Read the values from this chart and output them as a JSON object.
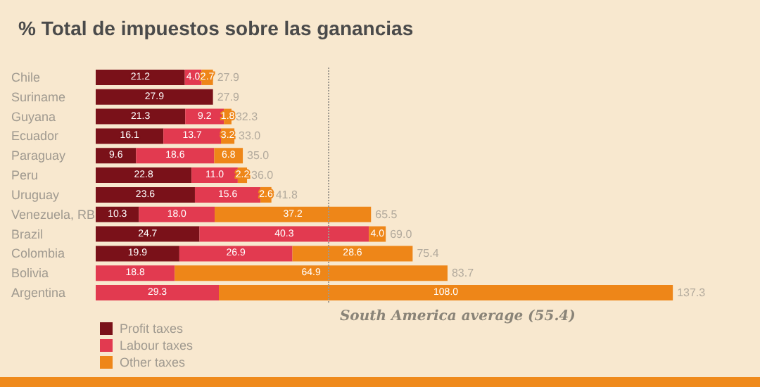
{
  "chart_data": {
    "type": "bar",
    "orientation": "horizontal",
    "stacked": true,
    "title": "% Total de impuestos sobre las ganancias",
    "categories": [
      "Chile",
      "Suriname",
      "Guyana",
      "Ecuador",
      "Paraguay",
      "Peru",
      "Uruguay",
      "Venezuela, RB",
      "Brazil",
      "Colombia",
      "Bolivia",
      "Argentina"
    ],
    "series": [
      {
        "name": "Profit taxes",
        "color": "#7a1119",
        "values": [
          21.2,
          27.9,
          21.3,
          16.1,
          9.6,
          22.8,
          23.6,
          10.3,
          24.7,
          19.9,
          0,
          0
        ],
        "value_labels": [
          "21.2",
          "27.9",
          "21.3",
          "16.1",
          "9.6",
          "22.8",
          "23.6",
          "10.3",
          "24.7",
          "19.9",
          null,
          null
        ]
      },
      {
        "name": "Labour taxes",
        "color": "#e23a50",
        "values": [
          4.0,
          0,
          9.2,
          13.7,
          18.6,
          11.0,
          15.6,
          18.0,
          40.3,
          26.9,
          18.8,
          29.3
        ],
        "value_labels": [
          "4.0",
          null,
          "9.2",
          "13.7",
          "18.6",
          "11.0",
          "15.6",
          "18.0",
          "40.3",
          "26.9",
          "18.8",
          "29.3"
        ]
      },
      {
        "name": "Other taxes",
        "color": "#ee8618",
        "values": [
          2.7,
          0,
          1.8,
          3.2,
          6.8,
          2.2,
          2.6,
          37.2,
          4.0,
          28.6,
          64.9,
          108.0
        ],
        "value_labels": [
          "2.7",
          null,
          "1.8",
          "3.2",
          "6.8",
          "2.2",
          "2.6",
          "37.2",
          "4.0",
          "28.6",
          "64.9",
          "108.0"
        ]
      }
    ],
    "totals": [
      "27.9",
      "27.9",
      "32.3",
      "33.0",
      "35.0",
      "36.0",
      "41.8",
      "65.5",
      "69.0",
      "75.4",
      "83.7",
      "137.3"
    ],
    "tick_labels": "y",
    "legend": "bottom left",
    "ref_lines": [
      {
        "axis": "x",
        "value": 55.4,
        "label": "South America average (55.4)",
        "color": "#a09a90",
        "line_style": "dotted"
      }
    ]
  }
}
